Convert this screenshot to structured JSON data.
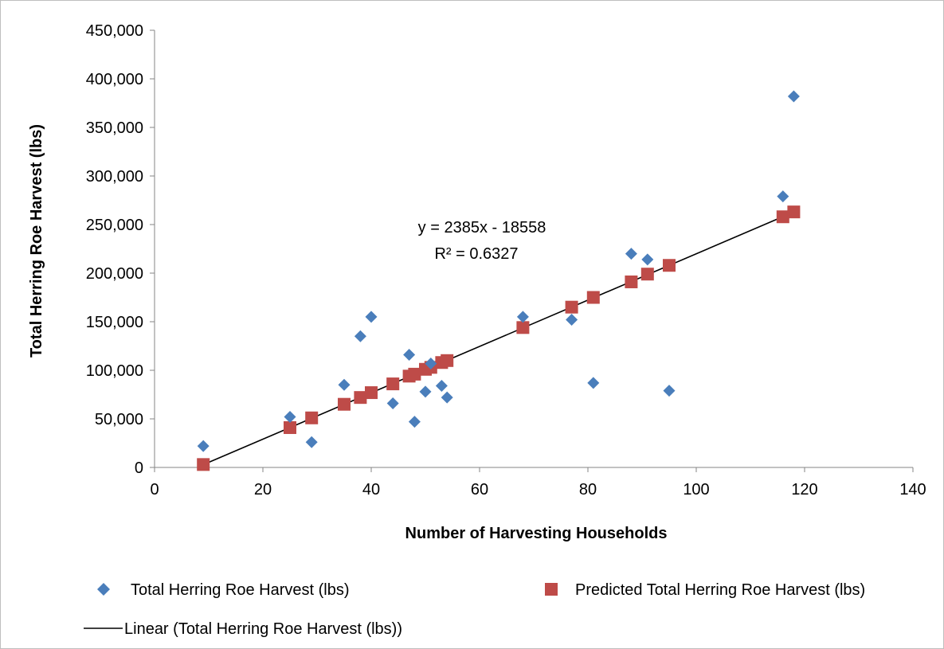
{
  "chart_data": {
    "type": "scatter",
    "title": "",
    "xlabel": "Number of Harvesting Households",
    "ylabel": "Total Herring Roe Harvest (lbs)",
    "xlim": [
      0,
      140
    ],
    "ylim": [
      0,
      450000
    ],
    "xticks": [
      0,
      20,
      40,
      60,
      80,
      100,
      120,
      140
    ],
    "yticks": [
      0,
      50000,
      100000,
      150000,
      200000,
      250000,
      300000,
      350000,
      400000,
      450000
    ],
    "xtick_labels": [
      "0",
      "20",
      "40",
      "60",
      "80",
      "100",
      "120",
      "140"
    ],
    "ytick_labels": [
      "0",
      "50,000",
      "100,000",
      "150,000",
      "200,000",
      "250,000",
      "300,000",
      "350,000",
      "400,000",
      "450,000"
    ],
    "grid": false,
    "legend_position": "bottom",
    "series": [
      {
        "name": "Total Herring Roe Harvest (lbs)",
        "marker": "diamond",
        "color": "#4a7ebb",
        "points": [
          [
            9,
            22000
          ],
          [
            25,
            52000
          ],
          [
            29,
            26000
          ],
          [
            35,
            85000
          ],
          [
            38,
            135000
          ],
          [
            40,
            155000
          ],
          [
            44,
            66000
          ],
          [
            47,
            116000
          ],
          [
            48,
            47000
          ],
          [
            50,
            78000
          ],
          [
            51,
            107000
          ],
          [
            53,
            84000
          ],
          [
            54,
            72000
          ],
          [
            68,
            155000
          ],
          [
            77,
            152000
          ],
          [
            81,
            87000
          ],
          [
            88,
            220000
          ],
          [
            91,
            214000
          ],
          [
            95,
            79000
          ],
          [
            116,
            279000
          ],
          [
            118,
            382000
          ]
        ]
      },
      {
        "name": "Predicted Total Herring Roe Harvest (lbs)",
        "marker": "square",
        "color": "#be4b48",
        "points": [
          [
            9,
            3000
          ],
          [
            25,
            41000
          ],
          [
            29,
            51000
          ],
          [
            35,
            65000
          ],
          [
            38,
            72000
          ],
          [
            40,
            77000
          ],
          [
            44,
            86000
          ],
          [
            47,
            94000
          ],
          [
            48,
            96000
          ],
          [
            50,
            101000
          ],
          [
            51,
            103000
          ],
          [
            53,
            108000
          ],
          [
            54,
            110000
          ],
          [
            68,
            144000
          ],
          [
            77,
            165000
          ],
          [
            81,
            175000
          ],
          [
            88,
            191000
          ],
          [
            91,
            199000
          ],
          [
            95,
            208000
          ],
          [
            116,
            258000
          ],
          [
            118,
            263000
          ]
        ]
      },
      {
        "name": "Linear (Total Herring Roe Harvest (lbs))",
        "type": "trendline",
        "color": "#000000",
        "slope": 2385,
        "intercept": -18558,
        "x_range": [
          9,
          118
        ]
      }
    ],
    "annotations": {
      "equation": "y = 2385x - 18558",
      "r_squared": "R² = 0.6327"
    }
  },
  "legend": {
    "items": [
      {
        "label": "Total Herring Roe Harvest (lbs)",
        "marker": "diamond",
        "color": "#4a7ebb"
      },
      {
        "label": "Predicted Total Herring Roe Harvest (lbs)",
        "marker": "square",
        "color": "#be4b48"
      },
      {
        "label": "Linear (Total Herring Roe Harvest (lbs))",
        "marker": "line",
        "color": "#000000"
      }
    ]
  }
}
